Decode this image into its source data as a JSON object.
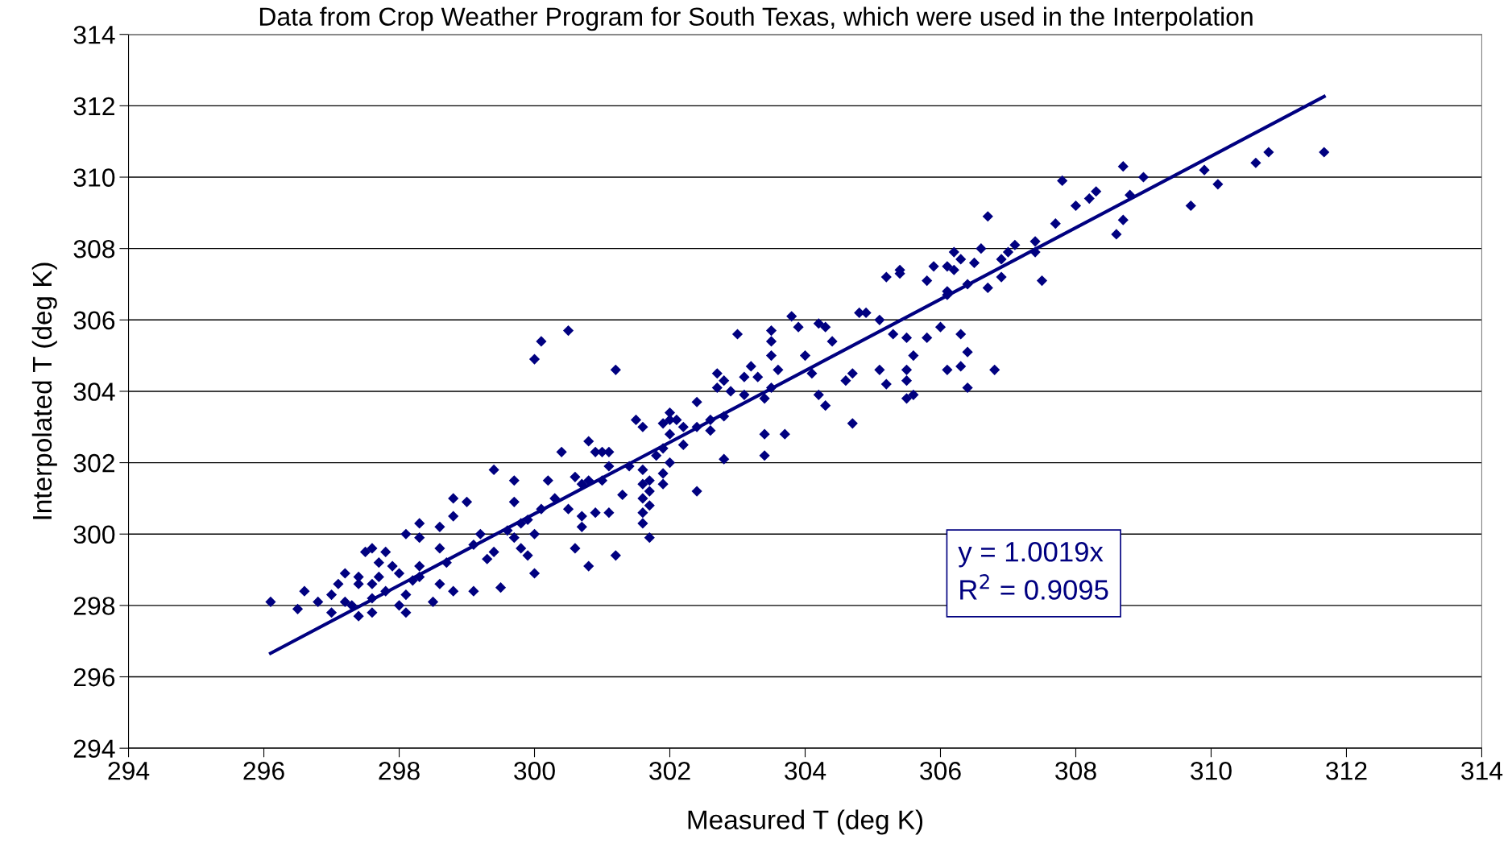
{
  "chart_data": {
    "type": "scatter",
    "title": "Data from Crop Weather Program for South Texas, which were used in the Interpolation",
    "xlabel": "Measured T (deg K)",
    "ylabel": "Interpolated T (deg K)",
    "xlim": [
      294,
      314
    ],
    "ylim": [
      294,
      314
    ],
    "xticks": [
      294,
      296,
      298,
      300,
      302,
      304,
      306,
      308,
      310,
      312,
      314
    ],
    "yticks": [
      294,
      296,
      298,
      300,
      302,
      304,
      306,
      308,
      310,
      312,
      314
    ],
    "grid": "y",
    "marker": "diamond",
    "annotations": [
      "y = 1.0019x",
      "R$^{2}$ = 0.9095"
    ],
    "series": [
      {
        "color": "#000080",
        "x": [
          310.85,
          310.66,
          310.1,
          309.9,
          309.7,
          309.0,
          308.7,
          308.8,
          308.7,
          308.6,
          308.3,
          308.2,
          308.0,
          307.8,
          307.7,
          307.5,
          307.4,
          307.4,
          307.1,
          307.0,
          306.9,
          306.9,
          306.7,
          306.7,
          306.6,
          306.5,
          306.4,
          306.3,
          306.2,
          306.2,
          306.1,
          305.9,
          305.8,
          305.4,
          305.2,
          305.4,
          306.1,
          306.1,
          306.0,
          306.3,
          305.8,
          305.6,
          306.8,
          306.1,
          306.3,
          306.4,
          306.4,
          305.5,
          305.5,
          305.5,
          305.6,
          305.2,
          305.1,
          304.7,
          304.7,
          304.6,
          304.4,
          304.3,
          304.2,
          303.9,
          303.8,
          304.8,
          304.9,
          305.1,
          305.3,
          305.5,
          304.3,
          304.2,
          304.1,
          304.0,
          303.5,
          303.5,
          303.5,
          303.6,
          303.5,
          303.4,
          303.4,
          303.7,
          303.4,
          303.3,
          303.2,
          303.0,
          302.9,
          302.8,
          302.7,
          302.7,
          303.1,
          302.8,
          302.8,
          303.1,
          302.4,
          302.2,
          302.4,
          302.6,
          302.6,
          302.4,
          302.2,
          302.1,
          302.0,
          302.0,
          301.9,
          302.0,
          301.9,
          302.0,
          301.9,
          301.9,
          301.8,
          301.7,
          301.7,
          301.7,
          301.6,
          301.7,
          301.6,
          301.6,
          301.6,
          301.5,
          301.6,
          301.4,
          301.6,
          301.3,
          301.1,
          301.1,
          301.1,
          301.0,
          300.9,
          300.8,
          300.8,
          300.7,
          301.0,
          300.7,
          300.7,
          300.6,
          300.8,
          301.2,
          300.9,
          300.6,
          300.4,
          300.5,
          300.3,
          300.1,
          300.2,
          300.0,
          300.1,
          300.5,
          301.2,
          300.0,
          299.9,
          300.0,
          299.8,
          299.8,
          299.7,
          299.7,
          299.7,
          299.9,
          299.6,
          299.5,
          299.4,
          299.4,
          299.3,
          299.2,
          299.1,
          299.1,
          299.0,
          298.8,
          298.8,
          298.8,
          298.7,
          298.6,
          298.6,
          298.6,
          298.5,
          298.3,
          298.3,
          298.3,
          298.3,
          298.1,
          298.2,
          298.1,
          298.1,
          298.0,
          297.9,
          297.8,
          298.0,
          297.8,
          297.7,
          297.7,
          297.6,
          297.6,
          297.6,
          297.5,
          297.6,
          297.4,
          297.4,
          297.3,
          297.4,
          297.2,
          297.2,
          297.1,
          297.0,
          297.0,
          296.8,
          296.6,
          296.5,
          296.1,
          311.67
        ],
        "values": [
          310.7,
          310.4,
          309.8,
          310.2,
          309.2,
          310.0,
          310.3,
          309.5,
          308.8,
          308.4,
          309.6,
          309.4,
          309.2,
          309.9,
          308.7,
          307.1,
          307.9,
          308.2,
          308.1,
          307.9,
          307.2,
          307.7,
          306.9,
          308.9,
          308.0,
          307.6,
          307.0,
          307.7,
          307.9,
          307.4,
          307.5,
          307.5,
          307.1,
          307.3,
          307.2,
          307.4,
          306.7,
          306.8,
          305.8,
          305.6,
          305.5,
          305.0,
          304.6,
          304.6,
          304.7,
          305.1,
          304.1,
          304.6,
          304.3,
          303.8,
          303.9,
          304.2,
          304.6,
          304.5,
          303.1,
          304.3,
          305.4,
          305.8,
          305.9,
          305.8,
          306.1,
          306.2,
          306.2,
          306.0,
          305.6,
          305.5,
          303.6,
          303.9,
          304.5,
          305.0,
          305.7,
          305.4,
          305.0,
          304.6,
          304.1,
          303.8,
          302.8,
          302.8,
          302.2,
          304.4,
          304.7,
          305.6,
          304.0,
          303.3,
          304.5,
          304.1,
          303.9,
          302.1,
          304.3,
          304.4,
          303.7,
          303.0,
          303.0,
          302.9,
          303.2,
          301.2,
          302.5,
          303.2,
          303.2,
          303.4,
          303.1,
          302.8,
          302.4,
          302.0,
          301.7,
          301.4,
          302.2,
          301.5,
          301.2,
          300.8,
          300.6,
          299.9,
          301.8,
          301.0,
          300.3,
          303.2,
          303.0,
          301.9,
          301.4,
          301.1,
          300.6,
          301.9,
          302.3,
          302.3,
          302.3,
          302.6,
          301.5,
          301.4,
          301.5,
          300.5,
          300.2,
          299.6,
          299.1,
          299.4,
          300.6,
          301.6,
          302.3,
          300.7,
          301.0,
          300.7,
          301.5,
          304.9,
          305.4,
          305.7,
          304.6,
          300.0,
          299.4,
          298.9,
          299.6,
          300.3,
          300.9,
          301.5,
          299.9,
          300.4,
          300.1,
          298.5,
          299.5,
          301.8,
          299.3,
          300.0,
          299.7,
          298.4,
          300.9,
          301.0,
          300.5,
          298.4,
          299.2,
          298.6,
          299.6,
          300.2,
          298.1,
          298.8,
          299.1,
          299.9,
          300.3,
          300.0,
          298.7,
          297.8,
          298.3,
          298.9,
          299.1,
          299.5,
          298.0,
          298.4,
          298.8,
          299.2,
          298.6,
          298.2,
          297.8,
          299.5,
          299.6,
          298.8,
          298.6,
          298.0,
          297.7,
          298.1,
          298.9,
          298.6,
          298.3,
          297.8,
          298.1,
          298.4,
          297.9,
          298.1,
          310.7
        ]
      },
      {
        "type": "line",
        "color": "#000080",
        "line_style": "solid",
        "marker": "none",
        "x": [
          296.1,
          311.67
        ],
        "values": [
          296.66,
          312.26
        ]
      }
    ]
  }
}
